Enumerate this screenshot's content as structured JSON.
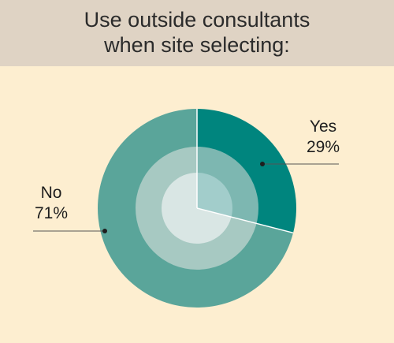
{
  "title_lines": [
    "Use outside consultants",
    "when site selecting:"
  ],
  "chart_data": {
    "type": "pie",
    "title": "Use outside consultants when site selecting:",
    "slices": [
      {
        "label": "Yes",
        "value": 29,
        "value_label": "29%",
        "color": "#00857e"
      },
      {
        "label": "No",
        "value": 71,
        "value_label": "71%",
        "color": "#5aa59a"
      }
    ],
    "start_angle": "12 o'clock",
    "direction": "clockwise",
    "style": "donut with lighter inner rings",
    "legend": "none (direct labels)"
  },
  "colors": {
    "background": "#fdeed0",
    "title_band": "#dfd3c4",
    "middle_ring": "#a7c9c2",
    "inner_circle": "#d9e6e4",
    "leader_line": "#555555"
  }
}
